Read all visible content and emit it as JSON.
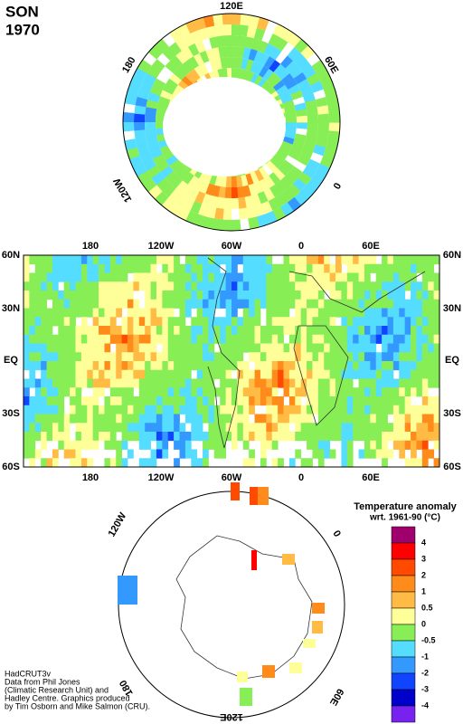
{
  "header": {
    "season": "SON",
    "year": "1970"
  },
  "north_polar": {
    "labels": [
      "120E",
      "60E",
      "0",
      "120W",
      "180"
    ]
  },
  "main_map": {
    "x_labels": [
      "180",
      "120W",
      "60W",
      "0",
      "60E"
    ],
    "y_labels": [
      "60N",
      "30N",
      "EQ",
      "30S",
      "60S"
    ]
  },
  "south_polar": {
    "labels": [
      "120W",
      "0",
      "60E",
      "120E",
      "180"
    ]
  },
  "legend": {
    "title": "Temperature anomaly",
    "subtitle": "wrt. 1961-90  (°C)",
    "labels": [
      "4",
      "3",
      "2",
      "1",
      "0.5",
      "0",
      "-0.5",
      "-1",
      "-2",
      "-3",
      "-4"
    ],
    "colors": [
      "#a0006e",
      "#ff0000",
      "#ff4a00",
      "#ff8c1a",
      "#ffbb44",
      "#ffff99",
      "#88ee55",
      "#55ddff",
      "#3399ff",
      "#1144ff",
      "#0000cc",
      "#7722ee"
    ]
  },
  "credits": [
    "HadCRUT3v",
    "Data from Phil Jones",
    "(Climatic Research Unit) and",
    "Hadley Centre.  Graphics produced",
    "by Tim Osborn and Mike Salmon (CRU)."
  ]
}
